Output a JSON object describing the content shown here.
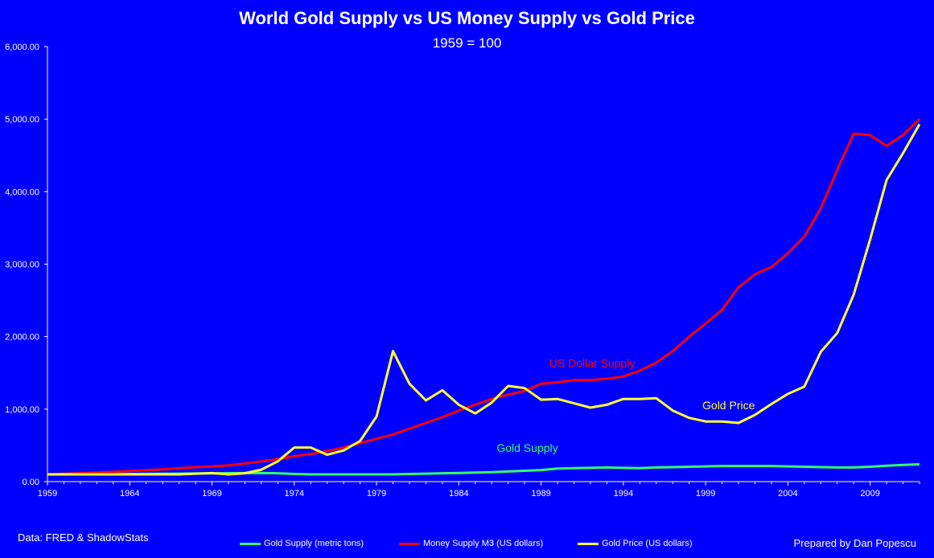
{
  "chart_data": {
    "type": "line",
    "title": "World Gold Supply vs US Money Supply vs Gold Price",
    "subtitle": "1959 = 100",
    "xlim": [
      1959,
      2012
    ],
    "ylim": [
      0,
      6000
    ],
    "x_ticks": [
      1959,
      1964,
      1969,
      1974,
      1979,
      1984,
      1989,
      1994,
      1999,
      2004,
      2009
    ],
    "y_ticks": [
      0,
      1000,
      2000,
      3000,
      4000,
      5000,
      6000
    ],
    "y_tick_labels": [
      "0.00",
      "1,000.00",
      "2,000.00",
      "3,000.00",
      "4,000.00",
      "5,000.00",
      "6,000.00"
    ],
    "grid": false,
    "legend_position": "bottom",
    "x": [
      1959,
      1960,
      1961,
      1962,
      1963,
      1964,
      1965,
      1966,
      1967,
      1968,
      1969,
      1970,
      1971,
      1972,
      1973,
      1974,
      1975,
      1976,
      1977,
      1978,
      1979,
      1980,
      1981,
      1982,
      1983,
      1984,
      1985,
      1986,
      1987,
      1988,
      1989,
      1990,
      1991,
      1992,
      1993,
      1994,
      1995,
      1996,
      1997,
      1998,
      1999,
      2000,
      2001,
      2002,
      2003,
      2004,
      2005,
      2006,
      2007,
      2008,
      2009,
      2010,
      2011,
      2012
    ],
    "series": [
      {
        "name": "Gold Supply (metric tons)",
        "color": "#33ff66",
        "values": [
          100,
          100,
          100,
          100,
          102,
          104,
          106,
          108,
          110,
          112,
          114,
          116,
          118,
          120,
          115,
          105,
          100,
          100,
          100,
          100,
          100,
          100,
          105,
          110,
          115,
          120,
          125,
          130,
          140,
          150,
          160,
          180,
          185,
          190,
          195,
          190,
          185,
          195,
          200,
          205,
          210,
          215,
          215,
          215,
          215,
          210,
          205,
          200,
          195,
          195,
          205,
          220,
          230,
          240
        ]
      },
      {
        "name": "Money Supply M3 (US dollars)",
        "color": "#ff0000",
        "values": [
          100,
          108,
          115,
          124,
          134,
          145,
          157,
          170,
          184,
          200,
          210,
          225,
          250,
          280,
          310,
          350,
          380,
          420,
          470,
          530,
          590,
          650,
          730,
          810,
          890,
          980,
          1060,
          1140,
          1200,
          1250,
          1350,
          1370,
          1400,
          1400,
          1420,
          1450,
          1530,
          1640,
          1800,
          2000,
          2180,
          2370,
          2680,
          2860,
          2960,
          3150,
          3380,
          3770,
          4300,
          4800,
          4780,
          4630,
          4780,
          5000
        ]
      },
      {
        "name": "Gold Price (US dollars)",
        "color": "#ffff33",
        "values": [
          100,
          100,
          100,
          100,
          100,
          100,
          100,
          100,
          100,
          110,
          118,
          100,
          115,
          165,
          280,
          470,
          470,
          370,
          430,
          560,
          900,
          1800,
          1350,
          1120,
          1260,
          1060,
          940,
          1090,
          1320,
          1290,
          1130,
          1140,
          1080,
          1020,
          1060,
          1140,
          1140,
          1150,
          980,
          880,
          830,
          830,
          810,
          920,
          1070,
          1210,
          1310,
          1790,
          2050,
          2580,
          3340,
          4160,
          4530,
          4930
        ]
      }
    ],
    "annotations": [
      {
        "text": "US Dollar Supply",
        "x": 1989.5,
        "y": 1580,
        "color": "#ff0000"
      },
      {
        "text": "Gold Price",
        "x": 1998.8,
        "y": 1000,
        "color": "#ffff33"
      },
      {
        "text": "Gold Supply",
        "x": 1986.3,
        "y": 410,
        "color": "#33ff66"
      }
    ]
  },
  "footer": {
    "source": "Data: FRED & ShadowStats",
    "credit": "Prepared by Dan Popescu"
  }
}
